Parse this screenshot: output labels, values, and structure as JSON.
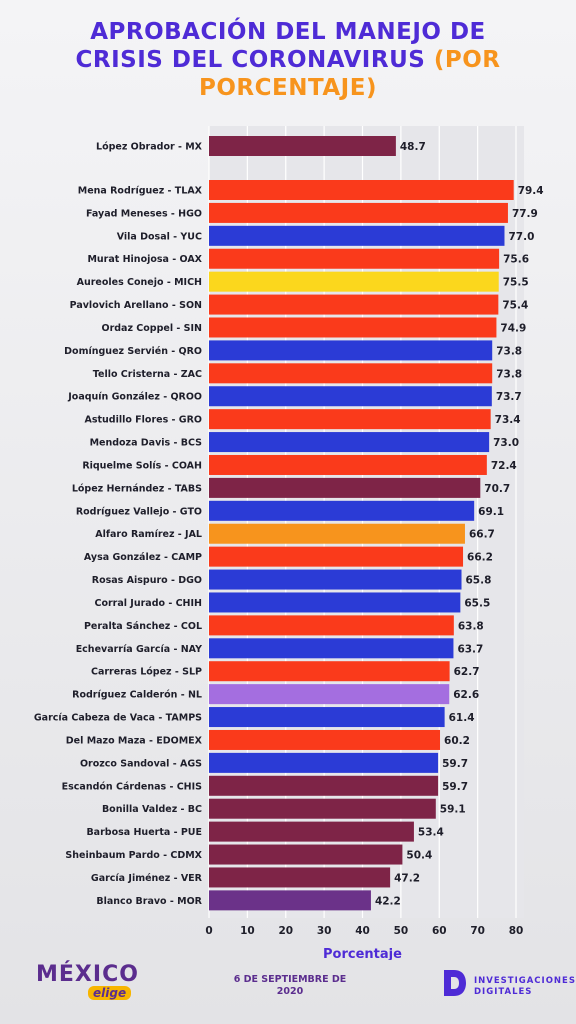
{
  "title": {
    "line1": "APROBACIÓN DEL MANEJO DE",
    "line2_main": "CRISIS DEL CORONAVIRUS ",
    "line2_accent": "(POR",
    "line3_accent": "PORCENTAJE)"
  },
  "colors": {
    "title": "#4e2bd6",
    "accent": "#f7941d",
    "morena": "#7e2447",
    "pri": "#fa3a1b",
    "pan": "#2b3bd6",
    "prd": "#fbd71d",
    "mc": "#f7941d",
    "independent": "#a46ee0",
    "pes": "#6b3289",
    "axis_label": "#4e2bd6"
  },
  "chart_data": {
    "type": "bar",
    "orientation": "horizontal",
    "xlabel": "Porcentaje",
    "xlim": [
      0,
      80
    ],
    "xticks": [
      0,
      10,
      20,
      30,
      40,
      50,
      60,
      70,
      80
    ],
    "grid": true,
    "bars": [
      {
        "label": "López Obrador - MX",
        "value": 48.7,
        "color": "#7e2447"
      },
      {
        "label": "Mena Rodríguez - TLAX",
        "value": 79.4,
        "color": "#fa3a1b"
      },
      {
        "label": "Fayad Meneses - HGO",
        "value": 77.9,
        "color": "#fa3a1b"
      },
      {
        "label": "Vila Dosal - YUC",
        "value": 77.0,
        "color": "#2b3bd6"
      },
      {
        "label": "Murat Hinojosa - OAX",
        "value": 75.6,
        "color": "#fa3a1b"
      },
      {
        "label": "Aureoles Conejo - MICH",
        "value": 75.5,
        "color": "#fbd71d"
      },
      {
        "label": "Pavlovich Arellano - SON",
        "value": 75.4,
        "color": "#fa3a1b"
      },
      {
        "label": "Ordaz Coppel - SIN",
        "value": 74.9,
        "color": "#fa3a1b"
      },
      {
        "label": "Domínguez Servién - QRO",
        "value": 73.8,
        "color": "#2b3bd6"
      },
      {
        "label": "Tello Cristerna - ZAC",
        "value": 73.8,
        "color": "#fa3a1b"
      },
      {
        "label": "Joaquín González - QROO",
        "value": 73.7,
        "color": "#2b3bd6"
      },
      {
        "label": "Astudillo Flores - GRO",
        "value": 73.4,
        "color": "#fa3a1b"
      },
      {
        "label": "Mendoza Davis - BCS",
        "value": 73.0,
        "color": "#2b3bd6"
      },
      {
        "label": "Riquelme Solís - COAH",
        "value": 72.4,
        "color": "#fa3a1b"
      },
      {
        "label": "López Hernández - TABS",
        "value": 70.7,
        "color": "#7e2447"
      },
      {
        "label": "Rodríguez Vallejo - GTO",
        "value": 69.1,
        "color": "#2b3bd6"
      },
      {
        "label": "Alfaro Ramírez - JAL",
        "value": 66.7,
        "color": "#f7941d"
      },
      {
        "label": "Aysa González - CAMP",
        "value": 66.2,
        "color": "#fa3a1b"
      },
      {
        "label": "Rosas Aispuro - DGO",
        "value": 65.8,
        "color": "#2b3bd6"
      },
      {
        "label": "Corral Jurado - CHIH",
        "value": 65.5,
        "color": "#2b3bd6"
      },
      {
        "label": "Peralta Sánchez - COL",
        "value": 63.8,
        "color": "#fa3a1b"
      },
      {
        "label": "Echevarría García - NAY",
        "value": 63.7,
        "color": "#2b3bd6"
      },
      {
        "label": "Carreras López - SLP",
        "value": 62.7,
        "color": "#fa3a1b"
      },
      {
        "label": "Rodríguez Calderón - NL",
        "value": 62.6,
        "color": "#a46ee0"
      },
      {
        "label": "García Cabeza de Vaca - TAMPS",
        "value": 61.4,
        "color": "#2b3bd6"
      },
      {
        "label": "Del Mazo Maza - EDOMEX",
        "value": 60.2,
        "color": "#fa3a1b"
      },
      {
        "label": "Orozco Sandoval - AGS",
        "value": 59.7,
        "color": "#2b3bd6"
      },
      {
        "label": "Escandón Cárdenas - CHIS",
        "value": 59.7,
        "color": "#7e2447"
      },
      {
        "label": "Bonilla Valdez - BC",
        "value": 59.1,
        "color": "#7e2447"
      },
      {
        "label": "Barbosa Huerta - PUE",
        "value": 53.4,
        "color": "#7e2447"
      },
      {
        "label": "Sheinbaum Pardo - CDMX",
        "value": 50.4,
        "color": "#7e2447"
      },
      {
        "label": "García Jiménez - VER",
        "value": 47.2,
        "color": "#7e2447"
      },
      {
        "label": "Blanco Bravo - MOR",
        "value": 42.2,
        "color": "#6b3289"
      }
    ]
  },
  "footer": {
    "logo_main": "MÉXICO",
    "logo_sub": "elige",
    "date_line1": "6 DE SEPTIEMBRE DE",
    "date_line2": "2020",
    "brand_line1": "INVESTIGACIONES",
    "brand_line2": "DIGITALES"
  }
}
